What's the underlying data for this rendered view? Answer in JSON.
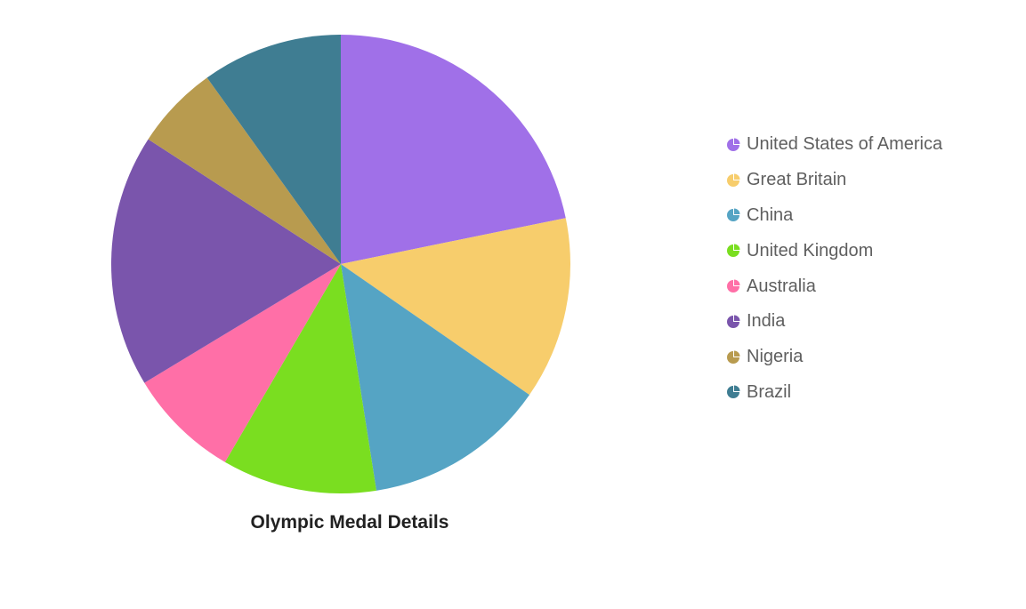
{
  "chart_data": {
    "type": "pie",
    "title": "Olympic Medal Details",
    "legend_position": "right",
    "slices": [
      {
        "name": "United States of America",
        "value": 22,
        "color": "#a070e8"
      },
      {
        "name": "Great Britain",
        "value": 13,
        "color": "#f7cd6c"
      },
      {
        "name": "China",
        "value": 13,
        "color": "#55a4c4"
      },
      {
        "name": "United Kingdom",
        "value": 11,
        "color": "#7ade20"
      },
      {
        "name": "Australia",
        "value": 8,
        "color": "#ff6fa7"
      },
      {
        "name": "India",
        "value": 18,
        "color": "#7a55ac"
      },
      {
        "name": "Nigeria",
        "value": 6,
        "color": "#b89b4f"
      },
      {
        "name": "Brazil",
        "value": 10,
        "color": "#3f7d92"
      }
    ]
  }
}
